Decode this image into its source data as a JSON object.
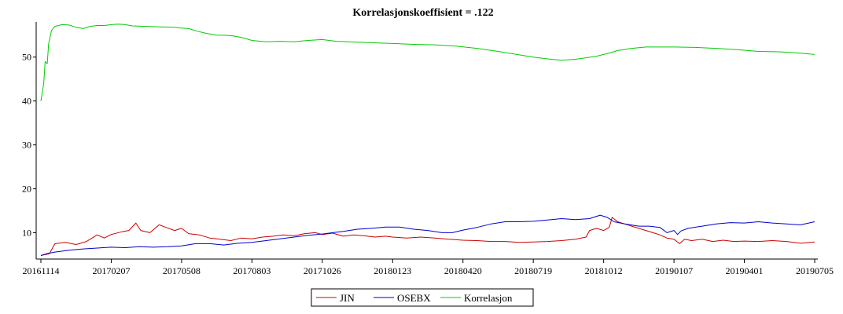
{
  "chart_data": {
    "type": "line",
    "title": "Korrelasjonskoeffisient =  .122",
    "xlabel": "",
    "ylabel": "",
    "x_tick_labels": [
      "20161114",
      "20170207",
      "20170508",
      "20170803",
      "20171026",
      "20180123",
      "20180420",
      "20180719",
      "20181012",
      "20190107",
      "20190401",
      "20190705"
    ],
    "x_range": [
      0,
      11
    ],
    "ylim": [
      4,
      58
    ],
    "y_ticks": [
      10,
      20,
      30,
      40,
      50
    ],
    "grid": false,
    "legend_position": "bottom-center",
    "colors": {
      "JIN": "#cc0000",
      "OSEBX": "#0000cc",
      "Korrelasjon": "#00cc00"
    },
    "series": [
      {
        "name": "JIN",
        "points": [
          [
            0,
            4.8
          ],
          [
            0.12,
            5.2
          ],
          [
            0.2,
            7.5
          ],
          [
            0.35,
            7.8
          ],
          [
            0.5,
            7.3
          ],
          [
            0.65,
            8.0
          ],
          [
            0.8,
            9.5
          ],
          [
            0.9,
            8.8
          ],
          [
            1.0,
            9.6
          ],
          [
            1.15,
            10.2
          ],
          [
            1.25,
            10.5
          ],
          [
            1.35,
            12.2
          ],
          [
            1.42,
            10.5
          ],
          [
            1.55,
            10.0
          ],
          [
            1.68,
            11.8
          ],
          [
            1.78,
            11.2
          ],
          [
            1.9,
            10.5
          ],
          [
            2.0,
            11.0
          ],
          [
            2.1,
            9.8
          ],
          [
            2.25,
            9.5
          ],
          [
            2.4,
            8.8
          ],
          [
            2.55,
            8.5
          ],
          [
            2.7,
            8.2
          ],
          [
            2.85,
            8.8
          ],
          [
            3.0,
            8.6
          ],
          [
            3.15,
            9.0
          ],
          [
            3.3,
            9.2
          ],
          [
            3.45,
            9.5
          ],
          [
            3.6,
            9.3
          ],
          [
            3.75,
            9.8
          ],
          [
            3.9,
            10.0
          ],
          [
            4.0,
            9.6
          ],
          [
            4.15,
            9.9
          ],
          [
            4.3,
            9.2
          ],
          [
            4.45,
            9.5
          ],
          [
            4.6,
            9.3
          ],
          [
            4.75,
            9.0
          ],
          [
            4.9,
            9.2
          ],
          [
            5.0,
            9.0
          ],
          [
            5.2,
            8.8
          ],
          [
            5.4,
            9.0
          ],
          [
            5.6,
            8.8
          ],
          [
            5.8,
            8.5
          ],
          [
            6.0,
            8.3
          ],
          [
            6.2,
            8.2
          ],
          [
            6.4,
            8.0
          ],
          [
            6.6,
            8.0
          ],
          [
            6.8,
            7.8
          ],
          [
            7.0,
            7.9
          ],
          [
            7.2,
            8.0
          ],
          [
            7.4,
            8.2
          ],
          [
            7.6,
            8.5
          ],
          [
            7.75,
            9.0
          ],
          [
            7.8,
            10.5
          ],
          [
            7.9,
            11.0
          ],
          [
            8.0,
            10.5
          ],
          [
            8.08,
            11.2
          ],
          [
            8.12,
            13.5
          ],
          [
            8.2,
            12.5
          ],
          [
            8.3,
            12.0
          ],
          [
            8.4,
            11.5
          ],
          [
            8.5,
            11.0
          ],
          [
            8.6,
            10.5
          ],
          [
            8.7,
            10.0
          ],
          [
            8.8,
            9.5
          ],
          [
            8.9,
            8.8
          ],
          [
            9.0,
            8.5
          ],
          [
            9.08,
            7.5
          ],
          [
            9.15,
            8.5
          ],
          [
            9.25,
            8.2
          ],
          [
            9.4,
            8.5
          ],
          [
            9.55,
            8.0
          ],
          [
            9.7,
            8.3
          ],
          [
            9.85,
            8.0
          ],
          [
            10.0,
            8.1
          ],
          [
            10.2,
            8.0
          ],
          [
            10.4,
            8.2
          ],
          [
            10.6,
            8.0
          ],
          [
            10.8,
            7.6
          ],
          [
            11.0,
            7.9
          ]
        ]
      },
      {
        "name": "OSEBX",
        "points": [
          [
            0,
            4.8
          ],
          [
            0.1,
            5.3
          ],
          [
            0.2,
            5.6
          ],
          [
            0.4,
            6.0
          ],
          [
            0.6,
            6.3
          ],
          [
            0.8,
            6.5
          ],
          [
            1.0,
            6.7
          ],
          [
            1.2,
            6.6
          ],
          [
            1.4,
            6.8
          ],
          [
            1.6,
            6.7
          ],
          [
            1.8,
            6.8
          ],
          [
            2.0,
            7.0
          ],
          [
            2.2,
            7.5
          ],
          [
            2.4,
            7.5
          ],
          [
            2.6,
            7.2
          ],
          [
            2.8,
            7.6
          ],
          [
            3.0,
            7.8
          ],
          [
            3.2,
            8.2
          ],
          [
            3.4,
            8.6
          ],
          [
            3.6,
            9.0
          ],
          [
            3.8,
            9.4
          ],
          [
            4.0,
            9.7
          ],
          [
            4.15,
            10.0
          ],
          [
            4.3,
            10.3
          ],
          [
            4.5,
            10.8
          ],
          [
            4.7,
            11.0
          ],
          [
            4.9,
            11.3
          ],
          [
            5.1,
            11.3
          ],
          [
            5.3,
            10.8
          ],
          [
            5.5,
            10.5
          ],
          [
            5.7,
            10.0
          ],
          [
            5.85,
            10.0
          ],
          [
            6.0,
            10.6
          ],
          [
            6.2,
            11.2
          ],
          [
            6.4,
            12.0
          ],
          [
            6.6,
            12.5
          ],
          [
            6.8,
            12.5
          ],
          [
            7.0,
            12.6
          ],
          [
            7.2,
            12.9
          ],
          [
            7.4,
            13.2
          ],
          [
            7.6,
            13.0
          ],
          [
            7.8,
            13.2
          ],
          [
            7.95,
            14.0
          ],
          [
            8.05,
            13.5
          ],
          [
            8.15,
            12.5
          ],
          [
            8.3,
            12.0
          ],
          [
            8.5,
            11.5
          ],
          [
            8.65,
            11.5
          ],
          [
            8.8,
            11.2
          ],
          [
            8.9,
            10.0
          ],
          [
            9.0,
            10.5
          ],
          [
            9.05,
            9.6
          ],
          [
            9.1,
            10.4
          ],
          [
            9.2,
            11.0
          ],
          [
            9.4,
            11.5
          ],
          [
            9.6,
            12.0
          ],
          [
            9.8,
            12.3
          ],
          [
            10.0,
            12.2
          ],
          [
            10.2,
            12.5
          ],
          [
            10.4,
            12.2
          ],
          [
            10.6,
            12.0
          ],
          [
            10.8,
            11.8
          ],
          [
            11.0,
            12.5
          ]
        ]
      },
      {
        "name": "Korrelasjon",
        "points": [
          [
            0,
            40
          ],
          [
            0.04,
            44
          ],
          [
            0.06,
            49
          ],
          [
            0.09,
            48.5
          ],
          [
            0.11,
            53
          ],
          [
            0.15,
            56
          ],
          [
            0.2,
            57
          ],
          [
            0.3,
            57.4
          ],
          [
            0.4,
            57.3
          ],
          [
            0.5,
            56.8
          ],
          [
            0.6,
            56.5
          ],
          [
            0.7,
            57.0
          ],
          [
            0.8,
            57.2
          ],
          [
            0.9,
            57.2
          ],
          [
            1.0,
            57.4
          ],
          [
            1.1,
            57.5
          ],
          [
            1.2,
            57.4
          ],
          [
            1.3,
            57.1
          ],
          [
            1.5,
            57.0
          ],
          [
            1.7,
            56.9
          ],
          [
            1.9,
            56.8
          ],
          [
            2.0,
            56.6
          ],
          [
            2.1,
            56.5
          ],
          [
            2.2,
            56.0
          ],
          [
            2.35,
            55.4
          ],
          [
            2.5,
            55.0
          ],
          [
            2.7,
            54.9
          ],
          [
            2.85,
            54.5
          ],
          [
            3.0,
            53.8
          ],
          [
            3.2,
            53.5
          ],
          [
            3.4,
            53.6
          ],
          [
            3.6,
            53.5
          ],
          [
            3.8,
            53.8
          ],
          [
            4.0,
            54.0
          ],
          [
            4.2,
            53.6
          ],
          [
            4.5,
            53.4
          ],
          [
            4.8,
            53.2
          ],
          [
            5.0,
            53.1
          ],
          [
            5.3,
            52.9
          ],
          [
            5.6,
            52.8
          ],
          [
            5.9,
            52.5
          ],
          [
            6.2,
            52.0
          ],
          [
            6.5,
            51.3
          ],
          [
            6.8,
            50.5
          ],
          [
            7.0,
            50.0
          ],
          [
            7.2,
            49.6
          ],
          [
            7.4,
            49.3
          ],
          [
            7.6,
            49.5
          ],
          [
            7.9,
            50.2
          ],
          [
            8.0,
            50.6
          ],
          [
            8.1,
            51.0
          ],
          [
            8.2,
            51.5
          ],
          [
            8.4,
            52.0
          ],
          [
            8.6,
            52.3
          ],
          [
            8.8,
            52.3
          ],
          [
            9.0,
            52.3
          ],
          [
            9.3,
            52.2
          ],
          [
            9.6,
            52.0
          ],
          [
            9.9,
            51.7
          ],
          [
            10.2,
            51.3
          ],
          [
            10.5,
            51.2
          ],
          [
            10.8,
            50.9
          ],
          [
            11.0,
            50.6
          ]
        ]
      }
    ]
  }
}
